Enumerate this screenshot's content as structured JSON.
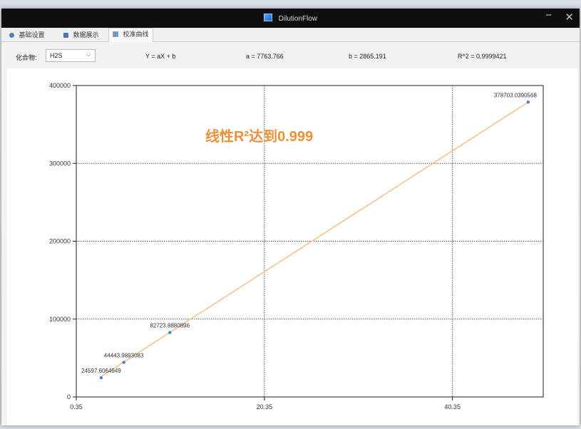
{
  "window": {
    "title": "DilutionFlow",
    "minimize_glyph": "−",
    "close_glyph": "✕"
  },
  "tabs": [
    {
      "label": "基础设置",
      "icon": "dot-icon"
    },
    {
      "label": "数据展示",
      "icon": "disk-icon"
    },
    {
      "label": "校准曲线",
      "icon": "chart-icon",
      "active": true
    }
  ],
  "toolbar": {
    "compound_label": "化合物:",
    "compound_value": "H2S",
    "equation": "Y = aX + b",
    "a_text": "a = 7763.766",
    "b_text": "b = 2865.191",
    "r2_text": "R^2 = 0.9999421"
  },
  "annotation": {
    "text": "线性R²达到0.999",
    "color": "#f0913a"
  },
  "colors": {
    "line": "#f7c08a",
    "point": "#4f7fb8",
    "grid": "#1f1f1f"
  },
  "chart_data": {
    "type": "scatter",
    "x_ticks": [
      "0.35",
      "20.35",
      "40.35"
    ],
    "y_ticks": [
      "0",
      "100000",
      "200000",
      "300000",
      "400000"
    ],
    "xlim": [
      0.35,
      50
    ],
    "ylim": [
      0,
      400000
    ],
    "grid": true,
    "points": [
      {
        "x": 3.0,
        "y": 24597.6064949,
        "label": "24597.6064949"
      },
      {
        "x": 5.4,
        "y": 44443.9893083,
        "label": "44443.9893083"
      },
      {
        "x": 10.3,
        "y": 82723.8880896,
        "label": "82723.8880896"
      },
      {
        "x": 48.4,
        "y": 378703.0390568,
        "label": "378703.0390568"
      }
    ],
    "fit_line": {
      "a": 7763.766,
      "b": 2865.191
    }
  }
}
